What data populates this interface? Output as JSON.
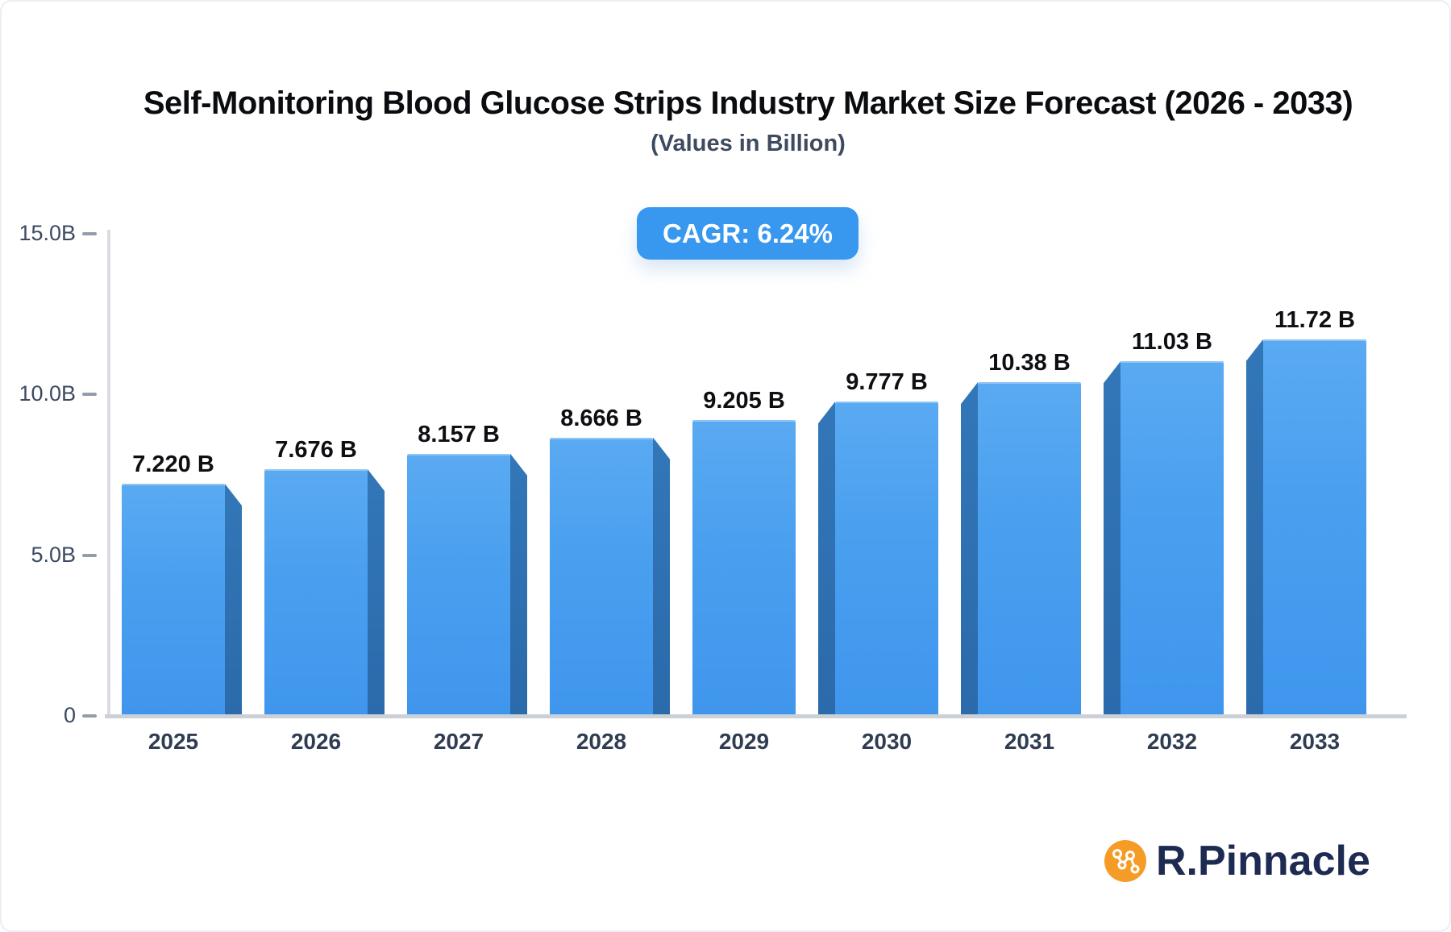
{
  "title": "Self-Monitoring Blood Glucose Strips Industry Market Size Forecast (2026 - 2033)",
  "subtitle": "(Values in Billion)",
  "cagr_badge": "CAGR: 6.24%",
  "brand": {
    "name": "R.Pinnacle",
    "icon": "network-nodes-icon",
    "icon_color": "#F59C27",
    "text_color": "#1D2A52"
  },
  "colors": {
    "bar_face": "#459EEF",
    "bar_side": "#2E73B4",
    "badge_bg": "#3897EF",
    "axis_line": "#DBDCE1",
    "baseline": "#CCD0D7",
    "tick": "#949CAA"
  },
  "chart_data": {
    "type": "bar",
    "categories": [
      "2025",
      "2026",
      "2027",
      "2028",
      "2029",
      "2030",
      "2031",
      "2032",
      "2033"
    ],
    "values": [
      7.22,
      7.676,
      8.157,
      8.666,
      9.205,
      9.777,
      10.38,
      11.03,
      11.72
    ],
    "labels": [
      "7.220 B",
      "7.676 B",
      "8.157 B",
      "8.666 B",
      "9.205 B",
      "9.777 B",
      "10.38 B",
      "11.03 B",
      "11.72 B"
    ],
    "title": "Self-Monitoring Blood Glucose Strips Industry Market Size Forecast (2026 - 2033)",
    "xlabel": "",
    "ylabel": "",
    "ylim": [
      0,
      15
    ],
    "grid": false,
    "legend": "none",
    "y_ticks": [
      {
        "value": 0,
        "label": "0"
      },
      {
        "value": 5,
        "label": "5.0B"
      },
      {
        "value": 10,
        "label": "10.0B"
      },
      {
        "value": 15,
        "label": "15.0B"
      }
    ]
  }
}
